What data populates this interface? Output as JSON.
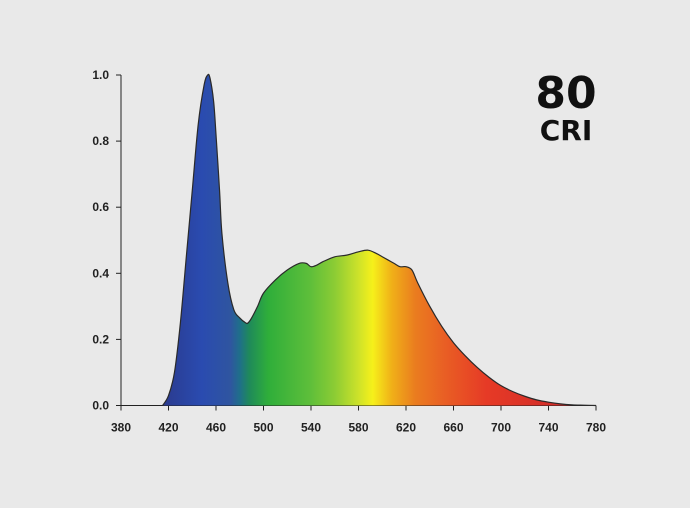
{
  "badge": {
    "value": "80",
    "label": "CRI"
  },
  "chart_data": {
    "type": "area",
    "title": "",
    "xlabel": "",
    "ylabel": "",
    "xlim": [
      380,
      780
    ],
    "ylim": [
      0,
      1.0
    ],
    "x_ticks": [
      380,
      420,
      460,
      500,
      540,
      580,
      620,
      660,
      700,
      740,
      780
    ],
    "y_ticks": [
      0.0,
      0.2,
      0.4,
      0.6,
      0.8,
      1.0
    ],
    "x_tick_labels": [
      "380",
      "420",
      "460",
      "500",
      "540",
      "580",
      "620",
      "660",
      "700",
      "740",
      "780"
    ],
    "y_tick_labels": [
      "0.0",
      "0.2",
      "0.4",
      "0.6",
      "0.8",
      "1.0"
    ],
    "grid": false,
    "fill": "visible-spectrum gradient",
    "series": [
      {
        "x": [
          415,
          420,
          425,
          430,
          435,
          440,
          445,
          450,
          453,
          455,
          458,
          460,
          463,
          465,
          470,
          475,
          480,
          485,
          487,
          490,
          495,
          500,
          510,
          520,
          530,
          536,
          540,
          545,
          550,
          560,
          570,
          580,
          588,
          595,
          600,
          605,
          610,
          615,
          620,
          625,
          630,
          640,
          650,
          660,
          670,
          680,
          690,
          700,
          710,
          720,
          730,
          740,
          750,
          760,
          770,
          780
        ],
        "y": [
          0.0,
          0.03,
          0.1,
          0.25,
          0.45,
          0.65,
          0.85,
          0.97,
          1.0,
          0.99,
          0.92,
          0.82,
          0.65,
          0.52,
          0.37,
          0.29,
          0.265,
          0.25,
          0.25,
          0.265,
          0.3,
          0.34,
          0.38,
          0.41,
          0.43,
          0.43,
          0.42,
          0.425,
          0.435,
          0.45,
          0.455,
          0.465,
          0.47,
          0.46,
          0.45,
          0.44,
          0.43,
          0.42,
          0.42,
          0.41,
          0.37,
          0.3,
          0.24,
          0.19,
          0.15,
          0.115,
          0.085,
          0.06,
          0.042,
          0.028,
          0.017,
          0.01,
          0.005,
          0.002,
          0.001,
          0.0
        ]
      }
    ]
  }
}
